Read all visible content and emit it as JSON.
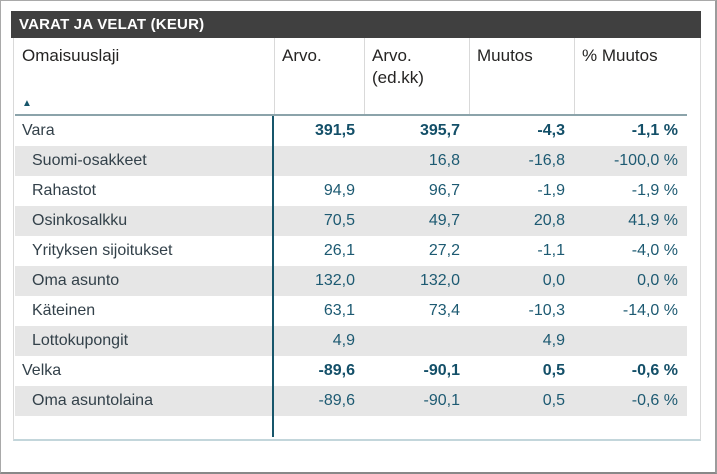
{
  "title": "VARAT JA VELAT (KEUR)",
  "icons": {
    "sort_ascending": "▲"
  },
  "colors": {
    "titlebar_bg": "#404040",
    "titlebar_text": "#ffffff",
    "header_text": "#252423",
    "value_text": "#1d5a72",
    "total_value_text": "#134f68",
    "label_text": "#33414a",
    "stripe_bg": "#e6e6e6",
    "column_divider": "#17566b",
    "header_underline": "#8ba3aa",
    "header_gridline": "#d9d9d9",
    "table_bottom_line": "#c3d6db"
  },
  "chart_data": {
    "type": "table",
    "title": "VARAT JA VELAT (KEUR)",
    "sort": {
      "column": "Omaisuuslaji",
      "direction": "ascending"
    },
    "columns": [
      {
        "label": "Omaisuuslaji",
        "sublabel": ""
      },
      {
        "label": "Arvo.",
        "sublabel": ""
      },
      {
        "label": "Arvo.",
        "sublabel": "(ed.kk)"
      },
      {
        "label": "Muutos",
        "sublabel": ""
      },
      {
        "label": "% Muutos",
        "sublabel": ""
      }
    ],
    "rows": [
      {
        "label": "Vara",
        "values": [
          "391,5",
          "395,7",
          "-4,3",
          "-1,1 %"
        ],
        "style": "total",
        "indent": false
      },
      {
        "label": "Suomi-osakkeet",
        "values": [
          "",
          "16,8",
          "-16,8",
          "-100,0 %"
        ],
        "style": "item",
        "indent": true
      },
      {
        "label": "Rahastot",
        "values": [
          "94,9",
          "96,7",
          "-1,9",
          "-1,9 %"
        ],
        "style": "item",
        "indent": true
      },
      {
        "label": "Osinkosalkku",
        "values": [
          "70,5",
          "49,7",
          "20,8",
          "41,9 %"
        ],
        "style": "item",
        "indent": true
      },
      {
        "label": "Yrityksen sijoitukset",
        "values": [
          "26,1",
          "27,2",
          "-1,1",
          "-4,0 %"
        ],
        "style": "item",
        "indent": true
      },
      {
        "label": "Oma asunto",
        "values": [
          "132,0",
          "132,0",
          "0,0",
          "0,0 %"
        ],
        "style": "item",
        "indent": true
      },
      {
        "label": "Käteinen",
        "values": [
          "63,1",
          "73,4",
          "-10,3",
          "-14,0 %"
        ],
        "style": "item",
        "indent": true
      },
      {
        "label": "Lottokupongit",
        "values": [
          "4,9",
          "",
          "4,9",
          ""
        ],
        "style": "item",
        "indent": true
      },
      {
        "label": "Velka",
        "values": [
          "-89,6",
          "-90,1",
          "0,5",
          "-0,6 %"
        ],
        "style": "total",
        "indent": false
      },
      {
        "label": "Oma asuntolaina",
        "values": [
          "-89,6",
          "-90,1",
          "0,5",
          "-0,6 %"
        ],
        "style": "item",
        "indent": true
      }
    ]
  }
}
